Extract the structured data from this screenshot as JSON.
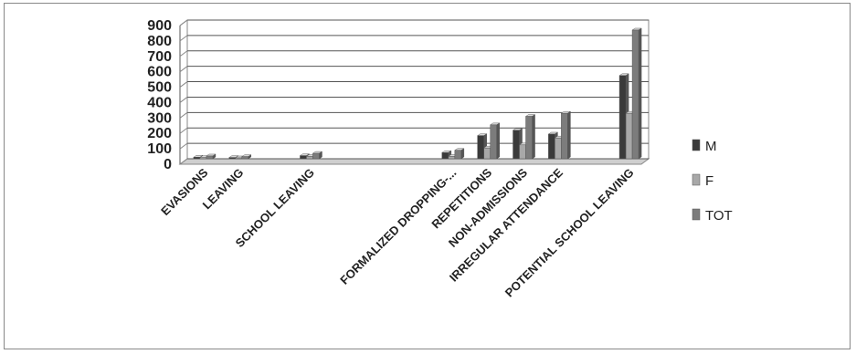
{
  "chart_data": {
    "type": "bar",
    "title": "",
    "xlabel": "",
    "ylabel": "",
    "ylim": [
      0,
      900
    ],
    "yticks": [
      0,
      100,
      200,
      300,
      400,
      500,
      600,
      700,
      800,
      900
    ],
    "grid": true,
    "legend_position": "right",
    "categories": [
      "EVASIONS",
      "LEAVING",
      "",
      "SCHOOL LEAVING",
      "",
      "",
      "",
      "FORMALIZED DROPPING-...",
      "REPETITIONS",
      "NON-ADMISSIONS",
      "IRREGULAR ATTENDANCE",
      "",
      "POTENTIAL SCHOOL LEAVING"
    ],
    "series": [
      {
        "name": "M",
        "color": "#3a3a3a",
        "values": [
          10,
          8,
          0,
          20,
          0,
          0,
          0,
          40,
          150,
          185,
          160,
          0,
          540
        ]
      },
      {
        "name": "F",
        "color": "#a8a8a8",
        "values": [
          8,
          6,
          0,
          15,
          0,
          0,
          0,
          15,
          70,
          90,
          135,
          0,
          295
        ]
      },
      {
        "name": "TOT",
        "color": "#7c7c7c",
        "values": [
          18,
          14,
          0,
          35,
          0,
          0,
          0,
          55,
          220,
          275,
          295,
          0,
          835
        ]
      }
    ]
  }
}
